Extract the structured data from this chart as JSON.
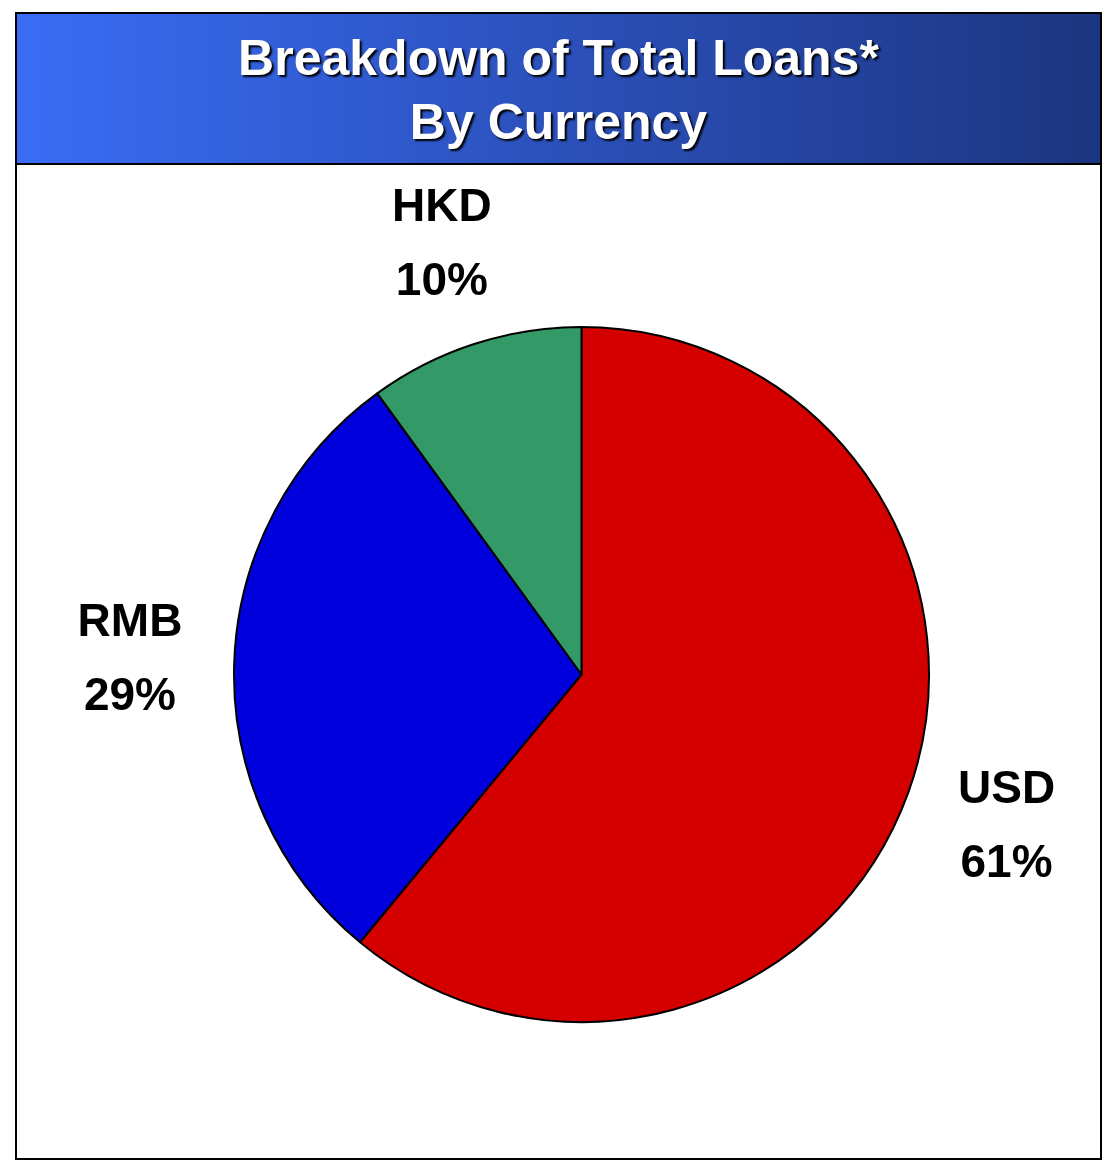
{
  "chart_data": {
    "type": "pie",
    "title": "Breakdown of Total Loans*\nBy Currency",
    "categories": [
      "USD",
      "RMB",
      "HKD"
    ],
    "values": [
      61,
      29,
      10
    ],
    "colors": [
      "#d40000",
      "#0000dc",
      "#339966"
    ],
    "value_labels": [
      "61%",
      "29%",
      "10%"
    ]
  }
}
